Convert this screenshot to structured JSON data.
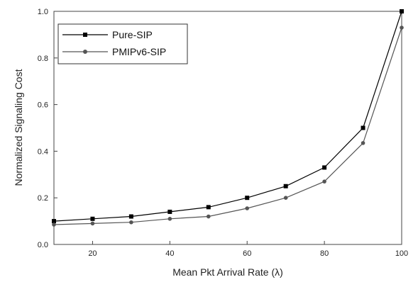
{
  "chart_data": {
    "type": "line",
    "title": "",
    "xlabel": "Mean Pkt Arrival Rate (λ)",
    "ylabel": "Normalized Signaling Cost",
    "xlim": [
      10,
      100
    ],
    "ylim": [
      0.0,
      1.0
    ],
    "x_ticks": [
      20,
      40,
      60,
      80,
      100
    ],
    "x_tick_labels": [
      "20",
      "40",
      "60",
      "80",
      "100"
    ],
    "y_ticks": [
      0.0,
      0.2,
      0.4,
      0.6,
      0.8,
      1.0
    ],
    "y_tick_labels": [
      "0.0",
      "0.2",
      "0.4",
      "0.6",
      "0.8",
      "1.0"
    ],
    "grid": false,
    "legend_position": "top-left",
    "x": [
      10,
      20,
      30,
      40,
      50,
      60,
      70,
      80,
      90,
      100
    ],
    "series": [
      {
        "name": "Pure-SIP",
        "marker": "square",
        "color": "#000000",
        "values": [
          0.1,
          0.11,
          0.12,
          0.14,
          0.16,
          0.2,
          0.25,
          0.33,
          0.5,
          1.0
        ]
      },
      {
        "name": "PMIPv6-SIP",
        "marker": "circle",
        "color": "#555555",
        "values": [
          0.085,
          0.09,
          0.095,
          0.11,
          0.12,
          0.155,
          0.2,
          0.27,
          0.435,
          0.93
        ]
      }
    ]
  }
}
